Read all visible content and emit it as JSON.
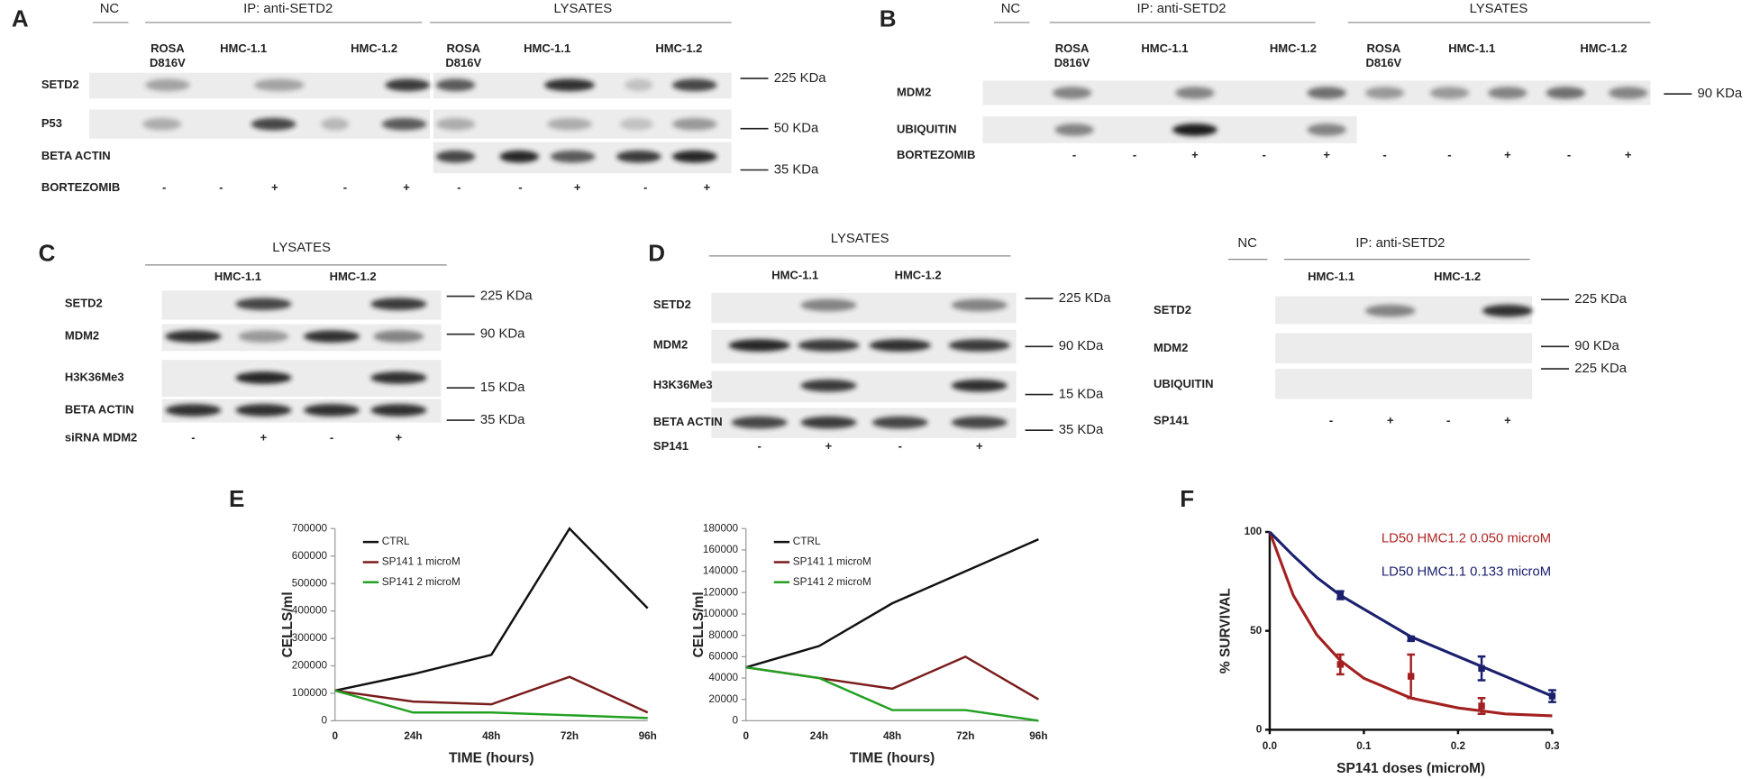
{
  "blots": {
    "A": {
      "letter": "A",
      "headers": [
        "NC",
        "IP: anti-SETD2",
        "LYSATES"
      ],
      "lanes": [
        [
          "ROSA",
          "D816V"
        ],
        [
          "HMC-1.1"
        ],
        [
          "HMC-1.2"
        ],
        [
          "ROSA",
          "D816V"
        ],
        [
          "HMC-1.1"
        ],
        [
          "HMC-1.2"
        ]
      ],
      "rows": [
        "SETD2",
        "P53",
        "BETA ACTIN"
      ],
      "treatment": "BORTEZOMIB",
      "signs": [
        "-",
        "-",
        "+",
        "-",
        "+",
        "-",
        "-",
        "+",
        "-",
        "+"
      ],
      "markers": [
        "225 KDa",
        "50 KDa",
        "35 KDa"
      ]
    },
    "B": {
      "letter": "B",
      "headers": [
        "NC",
        "IP: anti-SETD2",
        "LYSATES"
      ],
      "lanes": [
        [
          "ROSA",
          "D816V"
        ],
        [
          "HMC-1.1"
        ],
        [
          "HMC-1.2"
        ],
        [
          "ROSA",
          "D816V"
        ],
        [
          "HMC-1.1"
        ],
        [
          "HMC-1.2"
        ]
      ],
      "rows": [
        "MDM2",
        "UBIQUITIN"
      ],
      "treatment": "BORTEZOMIB",
      "signs": [
        "-",
        "-",
        "+",
        "-",
        "+",
        "-",
        "-",
        "+",
        "-",
        "+"
      ],
      "markers": [
        "90 KDa"
      ]
    },
    "C": {
      "letter": "C",
      "headers": [
        "LYSATES"
      ],
      "lanes": [
        [
          "HMC-1.1"
        ],
        [
          "HMC-1.2"
        ]
      ],
      "rows": [
        "SETD2",
        "MDM2",
        "H3K36Me3",
        "BETA ACTIN"
      ],
      "treatment": "siRNA MDM2",
      "signs": [
        "-",
        "+",
        "-",
        "+"
      ],
      "markers": [
        "225 KDa",
        "90 KDa",
        "15 KDa",
        "35 KDa"
      ]
    },
    "D": {
      "letter": "D",
      "headers": [
        "LYSATES"
      ],
      "lanes": [
        [
          "HMC-1.1"
        ],
        [
          "HMC-1.2"
        ]
      ],
      "rows": [
        "SETD2",
        "MDM2",
        "H3K36Me3",
        "BETA ACTIN"
      ],
      "treatment": "SP141",
      "signs": [
        "-",
        "+",
        "-",
        "+"
      ],
      "markers": [
        "225 KDa",
        "90 KDa",
        "15 KDa",
        "35 KDa"
      ]
    },
    "D_ip": {
      "headers": [
        "NC",
        "IP: anti-SETD2"
      ],
      "lanes": [
        [
          "HMC-1.1"
        ],
        [
          "HMC-1.2"
        ]
      ],
      "rows": [
        "SETD2",
        "MDM2",
        "UBIQUITIN"
      ],
      "treatment": "SP141",
      "signs": [
        "-",
        "+",
        "-",
        "+"
      ],
      "markers": [
        "225 KDa",
        "90 KDa",
        "225 KDa"
      ]
    }
  },
  "chart_data": [
    {
      "type": "line",
      "label": "E",
      "x_label": "TIME (hours)",
      "y_label": "CELLS/ml",
      "categories": [
        "0",
        "24h",
        "48h",
        "72h",
        "96h"
      ],
      "series": [
        {
          "name": "CTRL",
          "color": "#111111",
          "values": [
            110000,
            170000,
            240000,
            700000,
            410000
          ]
        },
        {
          "name": "SP141 1 microM",
          "color": "#7a1c1c",
          "values": [
            110000,
            70000,
            60000,
            160000,
            30000
          ]
        },
        {
          "name": "SP141 2 microM",
          "color": "#22a022",
          "values": [
            110000,
            30000,
            30000,
            20000,
            10000
          ]
        }
      ],
      "ylim": [
        0,
        700000
      ],
      "yticks": [
        0,
        100000,
        200000,
        300000,
        400000,
        500000,
        600000,
        700000
      ],
      "legend": "top-left"
    },
    {
      "type": "line",
      "x_label": "TIME (hours)",
      "y_label": "CELLS/ml",
      "categories": [
        "0",
        "24h",
        "48h",
        "72h",
        "96h"
      ],
      "series": [
        {
          "name": "CTRL",
          "color": "#111111",
          "values": [
            50000,
            70000,
            110000,
            140000,
            170000
          ]
        },
        {
          "name": "SP141 1 microM",
          "color": "#7a1c1c",
          "values": [
            50000,
            40000,
            30000,
            60000,
            20000
          ]
        },
        {
          "name": "SP141 2 microM",
          "color": "#22a022",
          "values": [
            50000,
            40000,
            10000,
            10000,
            0
          ]
        }
      ],
      "ylim": [
        0,
        180000
      ],
      "yticks": [
        0,
        20000,
        40000,
        60000,
        80000,
        100000,
        120000,
        140000,
        160000,
        180000
      ],
      "legend": "top-left"
    },
    {
      "type": "scatter",
      "label": "F",
      "x_label": "SP141 doses (microM)",
      "y_label": "% SURVIVAL",
      "series": [
        {
          "mode": "line",
          "color": "#a32020",
          "x": [
            0,
            0.025,
            0.05,
            0.075,
            0.1,
            0.15,
            0.2,
            0.25,
            0.3
          ],
          "values": [
            100,
            68,
            48,
            35,
            26,
            16,
            11,
            8,
            7
          ]
        },
        {
          "mode": "line",
          "color": "#1b206e",
          "x": [
            0,
            0.025,
            0.05,
            0.075,
            0.1,
            0.15,
            0.2,
            0.25,
            0.3
          ],
          "values": [
            100,
            88,
            77,
            68,
            61,
            47,
            37,
            27,
            17
          ]
        },
        {
          "mode": "markers",
          "color": "#a32020",
          "x": [
            0.075,
            0.15,
            0.225
          ],
          "values": [
            33,
            27,
            12
          ],
          "errors": [
            5,
            11,
            4
          ]
        },
        {
          "mode": "markers",
          "color": "#1b206e",
          "x": [
            0.075,
            0.15,
            0.225,
            0.3
          ],
          "values": [
            68,
            46,
            31,
            17
          ],
          "errors": [
            2,
            1,
            6,
            3
          ]
        }
      ],
      "annotations": [
        {
          "text": "LD50 HMC1.2 0.050 microM",
          "color": "#b02525"
        },
        {
          "text": "LD50 HMC1.1 0.133 microM",
          "color": "#1b206e"
        }
      ],
      "xlim": [
        0,
        0.3
      ],
      "xticks": [
        {
          "value": 0,
          "label": "0.0"
        },
        0.1,
        0.2,
        0.3
      ],
      "ylim": [
        0,
        100
      ],
      "yticks": [
        0,
        50,
        100
      ]
    }
  ]
}
